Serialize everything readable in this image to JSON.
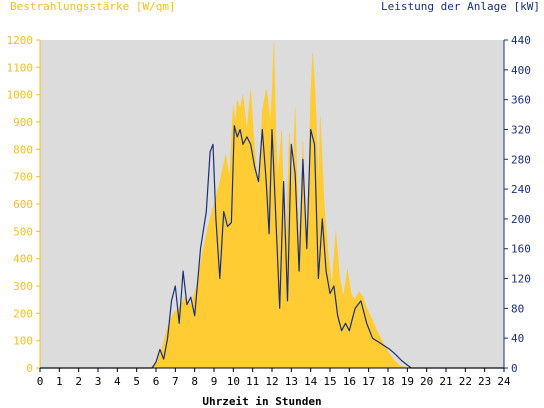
{
  "chart_data": {
    "type": "area",
    "title": "",
    "left_axis_title": "Bestrahlungsstärke [W/qm]",
    "right_axis_title": "Leistung der Anlage [kW]",
    "xlabel": "Uhrzeit in Stunden",
    "x_ticks": [
      "0",
      "1",
      "2",
      "3",
      "4",
      "5",
      "6",
      "7",
      "8",
      "9",
      "10",
      "11",
      "12",
      "13",
      "14",
      "15",
      "16",
      "17",
      "18",
      "19",
      "20",
      "21",
      "22",
      "23",
      "24"
    ],
    "y_left_ticks": [
      "0",
      "100",
      "200",
      "300",
      "400",
      "500",
      "600",
      "700",
      "800",
      "900",
      "1000",
      "1100",
      "1200"
    ],
    "y_right_ticks": [
      "0",
      "40",
      "80",
      "120",
      "160",
      "200",
      "240",
      "280",
      "320",
      "360",
      "400",
      "440"
    ],
    "xlim": [
      0,
      24
    ],
    "ylim_left": [
      0,
      1200
    ],
    "ylim_right": [
      0,
      440
    ],
    "grid": false,
    "colors": {
      "irradiance": "#ffcc33",
      "power": "#1a2f78",
      "plot_background": "#dcdcdc",
      "left_axis": "#f0c020",
      "right_axis": "#1a2f78",
      "x_axis": "#000000"
    },
    "series": [
      {
        "name": "Bestrahlungsstärke [W/qm]",
        "axis": "left",
        "kind": "area",
        "x": [
          0,
          5.7,
          6.0,
          6.3,
          6.6,
          6.9,
          7.2,
          7.5,
          7.8,
          8.1,
          8.4,
          8.7,
          9.0,
          9.3,
          9.6,
          9.8,
          10.0,
          10.1,
          10.2,
          10.35,
          10.5,
          10.7,
          10.9,
          11.1,
          11.3,
          11.5,
          11.7,
          11.8,
          11.9,
          12.0,
          12.1,
          12.2,
          12.3,
          12.5,
          12.7,
          12.9,
          13.0,
          13.1,
          13.2,
          13.4,
          13.6,
          13.8,
          14.0,
          14.1,
          14.2,
          14.3,
          14.4,
          14.5,
          14.7,
          14.9,
          15.1,
          15.3,
          15.5,
          15.7,
          15.9,
          16.1,
          16.3,
          16.5,
          16.7,
          16.9,
          17.1,
          17.4,
          17.7,
          18.0,
          18.3,
          18.6,
          19.0,
          19.2,
          24
        ],
        "y": [
          0,
          0,
          20,
          70,
          150,
          200,
          220,
          260,
          230,
          300,
          420,
          520,
          600,
          680,
          780,
          700,
          960,
          900,
          980,
          950,
          1000,
          870,
          1020,
          800,
          650,
          940,
          1020,
          980,
          900,
          1000,
          1190,
          860,
          700,
          870,
          380,
          860,
          650,
          750,
          950,
          420,
          830,
          400,
          1000,
          1150,
          1050,
          900,
          650,
          920,
          600,
          420,
          300,
          500,
          330,
          260,
          360,
          270,
          250,
          280,
          260,
          220,
          190,
          140,
          100,
          60,
          30,
          10,
          0,
          0,
          0
        ]
      },
      {
        "name": "Leistung der Anlage [kW]",
        "axis": "right",
        "kind": "line",
        "x": [
          0,
          5.8,
          6.0,
          6.2,
          6.4,
          6.6,
          6.8,
          7.0,
          7.2,
          7.4,
          7.6,
          7.8,
          8.0,
          8.3,
          8.6,
          8.8,
          8.95,
          9.1,
          9.3,
          9.5,
          9.7,
          9.9,
          10.05,
          10.2,
          10.35,
          10.5,
          10.7,
          10.9,
          11.1,
          11.3,
          11.5,
          11.7,
          11.85,
          12.0,
          12.2,
          12.4,
          12.6,
          12.8,
          13.0,
          13.2,
          13.4,
          13.6,
          13.8,
          14.0,
          14.2,
          14.4,
          14.6,
          14.8,
          15.0,
          15.2,
          15.4,
          15.6,
          15.8,
          16.0,
          16.3,
          16.6,
          16.9,
          17.2,
          17.5,
          17.8,
          18.1,
          18.4,
          18.7,
          19.0,
          19.2,
          24
        ],
        "y": [
          0,
          0,
          8,
          25,
          12,
          40,
          90,
          110,
          60,
          130,
          85,
          95,
          70,
          160,
          210,
          290,
          300,
          200,
          120,
          210,
          190,
          195,
          325,
          310,
          320,
          300,
          310,
          300,
          270,
          250,
          320,
          250,
          180,
          320,
          200,
          80,
          250,
          90,
          300,
          260,
          130,
          280,
          160,
          320,
          300,
          120,
          200,
          130,
          100,
          110,
          70,
          50,
          60,
          50,
          80,
          90,
          60,
          40,
          35,
          30,
          25,
          18,
          10,
          4,
          0,
          0
        ]
      }
    ]
  }
}
